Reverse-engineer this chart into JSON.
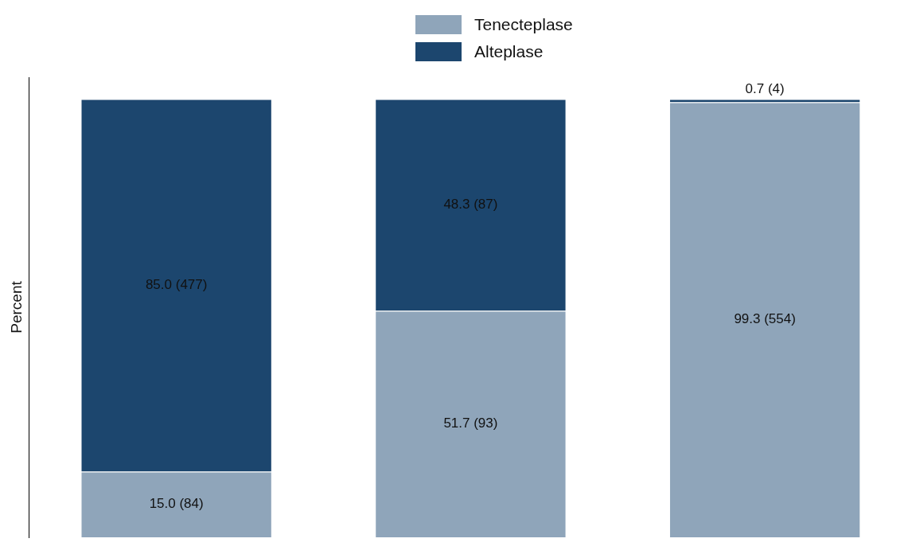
{
  "chart_data": {
    "type": "bar",
    "stacked": true,
    "ylabel": "Percent",
    "categories": [
      null,
      null,
      null
    ],
    "ylim": [
      0,
      105
    ],
    "grid": false,
    "legend": "top",
    "series": [
      {
        "name": "Tenecteplase",
        "color": "#8fa5ba",
        "values": [
          15.0,
          51.7,
          99.3
        ],
        "value_labels": [
          "15.0 (84)",
          "51.7 (93)",
          "99.3 (554)"
        ]
      },
      {
        "name": "Alteplase",
        "color": "#1c466e",
        "values": [
          85.0,
          48.3,
          0.7
        ],
        "value_labels": [
          "85.0 (477)",
          "48.3 (87)",
          "0.7 (4)"
        ]
      }
    ]
  }
}
